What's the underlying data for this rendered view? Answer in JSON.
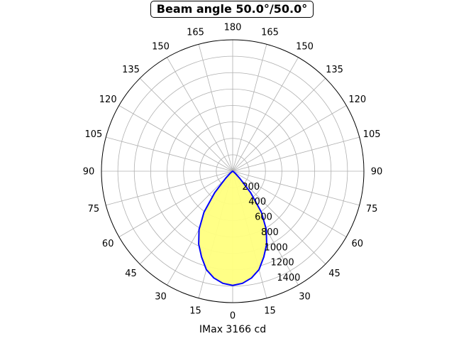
{
  "chart_data": {
    "type": "line",
    "projection": "polar",
    "title": "Beam angle 50.0°/50.0°",
    "xlabel": "IMax 3166 cd",
    "angle_ticks": [
      "0",
      "15",
      "30",
      "45",
      "60",
      "75",
      "90",
      "105",
      "120",
      "135",
      "150",
      "165",
      "180",
      "165",
      "150",
      "135",
      "120",
      "105",
      "90",
      "75",
      "60",
      "45",
      "30",
      "15"
    ],
    "radial_ticks": [
      200,
      400,
      600,
      800,
      1000,
      1200,
      1400
    ],
    "rlim": [
      0,
      1600
    ],
    "grid": true,
    "series": [
      {
        "color": "#0000ff",
        "fill": "#ffff80",
        "angles": [
          -90,
          -80,
          -70,
          -60,
          -50,
          -45,
          -40,
          -35,
          -30,
          -25,
          -20,
          -15,
          -10,
          -5,
          0,
          5,
          10,
          15,
          20,
          25,
          30,
          35,
          40,
          45,
          50,
          60,
          70,
          80,
          90
        ],
        "values": [
          0,
          0,
          0,
          5,
          40,
          120,
          340,
          610,
          820,
          980,
          1110,
          1240,
          1320,
          1370,
          1390,
          1370,
          1320,
          1240,
          1110,
          980,
          820,
          610,
          340,
          120,
          40,
          5,
          0,
          0,
          0
        ]
      }
    ]
  }
}
